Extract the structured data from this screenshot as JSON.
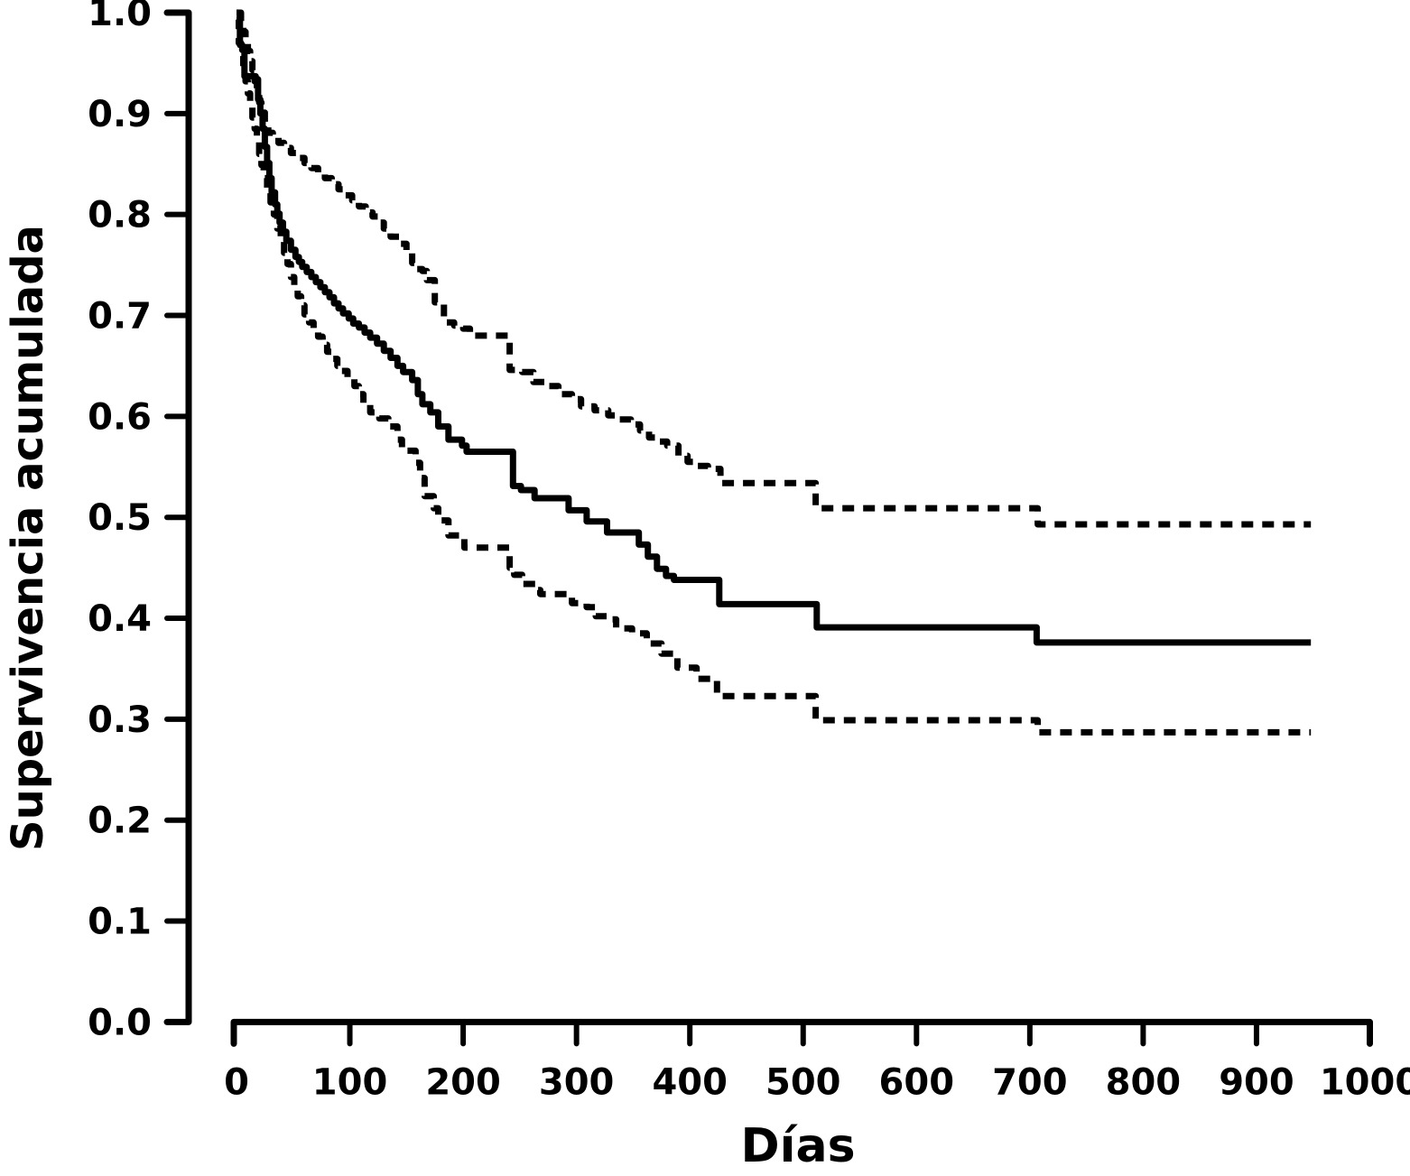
{
  "figure": {
    "background_color": "#ffffff",
    "line_color": "#000000"
  },
  "chart_data": {
    "type": "line",
    "subtype": "kaplan-meier-step-curve-with-confidence-bands",
    "title": "",
    "xlabel": "Días",
    "ylabel": "Supervivencia acumulada",
    "xlim": [
      0,
      1000
    ],
    "ylim": [
      0.0,
      1.0
    ],
    "grid": false,
    "legend": false,
    "x_ticks": [
      {
        "v": 0,
        "label": "0"
      },
      {
        "v": 100,
        "label": "100"
      },
      {
        "v": 200,
        "label": "200"
      },
      {
        "v": 300,
        "label": "300"
      },
      {
        "v": 400,
        "label": "400"
      },
      {
        "v": 500,
        "label": "500"
      },
      {
        "v": 600,
        "label": "600"
      },
      {
        "v": 700,
        "label": "700"
      },
      {
        "v": 800,
        "label": "800"
      },
      {
        "v": 900,
        "label": "900"
      },
      {
        "v": 1000,
        "label": "1000"
      }
    ],
    "y_ticks": [
      {
        "v": 1.0,
        "label": "1.0"
      },
      {
        "v": 0.9,
        "label": "0.9"
      },
      {
        "v": 0.8,
        "label": "0.8"
      },
      {
        "v": 0.7,
        "label": "0.7"
      },
      {
        "v": 0.6,
        "label": "0.6"
      },
      {
        "v": 0.5,
        "label": "0.5"
      },
      {
        "v": 0.4,
        "label": "0.4"
      },
      {
        "v": 0.3,
        "label": "0.3"
      },
      {
        "v": 0.2,
        "label": "0.2"
      },
      {
        "v": 0.1,
        "label": "0.1"
      },
      {
        "v": 0.0,
        "label": "0.0"
      }
    ],
    "series": [
      {
        "name": "supervivencia-acumulada",
        "style": "solid",
        "points": [
          [
            0,
            1.0
          ],
          [
            3,
            0.968
          ],
          [
            5,
            0.963
          ],
          [
            7,
            0.937
          ],
          [
            17,
            0.934
          ],
          [
            19,
            0.914
          ],
          [
            21,
            0.9
          ],
          [
            23,
            0.885
          ],
          [
            25,
            0.867
          ],
          [
            27,
            0.851
          ],
          [
            29,
            0.836
          ],
          [
            31,
            0.822
          ],
          [
            34,
            0.81
          ],
          [
            36,
            0.801
          ],
          [
            38,
            0.792
          ],
          [
            41,
            0.783
          ],
          [
            44,
            0.774
          ],
          [
            48,
            0.765
          ],
          [
            52,
            0.758
          ],
          [
            55,
            0.753
          ],
          [
            58,
            0.748
          ],
          [
            62,
            0.743
          ],
          [
            66,
            0.738
          ],
          [
            70,
            0.733
          ],
          [
            74,
            0.728
          ],
          [
            78,
            0.723
          ],
          [
            82,
            0.718
          ],
          [
            86,
            0.712
          ],
          [
            90,
            0.707
          ],
          [
            94,
            0.702
          ],
          [
            99,
            0.697
          ],
          [
            103,
            0.692
          ],
          [
            108,
            0.688
          ],
          [
            113,
            0.683
          ],
          [
            118,
            0.678
          ],
          [
            124,
            0.672
          ],
          [
            130,
            0.665
          ],
          [
            136,
            0.658
          ],
          [
            142,
            0.65
          ],
          [
            147,
            0.644
          ],
          [
            155,
            0.636
          ],
          [
            160,
            0.622
          ],
          [
            164,
            0.612
          ],
          [
            171,
            0.604
          ],
          [
            178,
            0.59
          ],
          [
            187,
            0.577
          ],
          [
            199,
            0.571
          ],
          [
            203,
            0.565
          ],
          [
            244,
            0.531
          ],
          [
            251,
            0.527
          ],
          [
            263,
            0.519
          ],
          [
            293,
            0.507
          ],
          [
            309,
            0.496
          ],
          [
            327,
            0.485
          ],
          [
            355,
            0.473
          ],
          [
            363,
            0.461
          ],
          [
            371,
            0.449
          ],
          [
            379,
            0.442
          ],
          [
            386,
            0.438
          ],
          [
            426,
            0.414
          ],
          [
            512,
            0.391
          ],
          [
            706,
            0.376
          ],
          [
            948,
            0.376
          ]
        ]
      },
      {
        "name": "ic95-superior",
        "style": "dashed",
        "points": [
          [
            1,
            1.0
          ],
          [
            4,
            0.99
          ],
          [
            6,
            0.981
          ],
          [
            8,
            0.972
          ],
          [
            10,
            0.962
          ],
          [
            12,
            0.952
          ],
          [
            14,
            0.943
          ],
          [
            16,
            0.932
          ],
          [
            18,
            0.921
          ],
          [
            20,
            0.911
          ],
          [
            22,
            0.901
          ],
          [
            25,
            0.891
          ],
          [
            28,
            0.881
          ],
          [
            32,
            0.876
          ],
          [
            37,
            0.871
          ],
          [
            42,
            0.866
          ],
          [
            48,
            0.861
          ],
          [
            54,
            0.856
          ],
          [
            60,
            0.851
          ],
          [
            66,
            0.846
          ],
          [
            72,
            0.841
          ],
          [
            78,
            0.836
          ],
          [
            84,
            0.83
          ],
          [
            90,
            0.825
          ],
          [
            96,
            0.819
          ],
          [
            102,
            0.814
          ],
          [
            108,
            0.808
          ],
          [
            114,
            0.802
          ],
          [
            120,
            0.798
          ],
          [
            126,
            0.792
          ],
          [
            130,
            0.786
          ],
          [
            136,
            0.778
          ],
          [
            144,
            0.771
          ],
          [
            150,
            0.763
          ],
          [
            155,
            0.752
          ],
          [
            159,
            0.746
          ],
          [
            164,
            0.744
          ],
          [
            168,
            0.735
          ],
          [
            175,
            0.713
          ],
          [
            183,
            0.693
          ],
          [
            192,
            0.69
          ],
          [
            200,
            0.687
          ],
          [
            206,
            0.68
          ],
          [
            241,
            0.646
          ],
          [
            252,
            0.644
          ],
          [
            262,
            0.634
          ],
          [
            274,
            0.63
          ],
          [
            284,
            0.622
          ],
          [
            296,
            0.617
          ],
          [
            304,
            0.61
          ],
          [
            316,
            0.606
          ],
          [
            328,
            0.601
          ],
          [
            338,
            0.597
          ],
          [
            348,
            0.592
          ],
          [
            356,
            0.586
          ],
          [
            364,
            0.579
          ],
          [
            372,
            0.575
          ],
          [
            380,
            0.571
          ],
          [
            390,
            0.561
          ],
          [
            398,
            0.555
          ],
          [
            406,
            0.551
          ],
          [
            416,
            0.548
          ],
          [
            427,
            0.534
          ],
          [
            511,
            0.509
          ],
          [
            707,
            0.493
          ],
          [
            948,
            0.493
          ]
        ]
      },
      {
        "name": "ic95-inferior",
        "style": "dashed",
        "points": [
          [
            0,
            0.993
          ],
          [
            2,
            0.97
          ],
          [
            4,
            0.957
          ],
          [
            6,
            0.944
          ],
          [
            8,
            0.932
          ],
          [
            10,
            0.92
          ],
          [
            12,
            0.908
          ],
          [
            14,
            0.896
          ],
          [
            16,
            0.885
          ],
          [
            18,
            0.872
          ],
          [
            20,
            0.86
          ],
          [
            22,
            0.849
          ],
          [
            24,
            0.836
          ],
          [
            27,
            0.824
          ],
          [
            30,
            0.812
          ],
          [
            33,
            0.8
          ],
          [
            36,
            0.786
          ],
          [
            39,
            0.774
          ],
          [
            42,
            0.762
          ],
          [
            45,
            0.751
          ],
          [
            48,
            0.738
          ],
          [
            51,
            0.728
          ],
          [
            54,
            0.719
          ],
          [
            57,
            0.71
          ],
          [
            60,
            0.701
          ],
          [
            64,
            0.693
          ],
          [
            68,
            0.686
          ],
          [
            72,
            0.679
          ],
          [
            76,
            0.671
          ],
          [
            80,
            0.664
          ],
          [
            85,
            0.657
          ],
          [
            89,
            0.65
          ],
          [
            93,
            0.645
          ],
          [
            98,
            0.638
          ],
          [
            104,
            0.63
          ],
          [
            108,
            0.622
          ],
          [
            112,
            0.613
          ],
          [
            118,
            0.604
          ],
          [
            126,
            0.598
          ],
          [
            134,
            0.59
          ],
          [
            142,
            0.577
          ],
          [
            146,
            0.566
          ],
          [
            158,
            0.554
          ],
          [
            162,
            0.539
          ],
          [
            166,
            0.521
          ],
          [
            174,
            0.509
          ],
          [
            178,
            0.497
          ],
          [
            187,
            0.482
          ],
          [
            201,
            0.47
          ],
          [
            241,
            0.45
          ],
          [
            245,
            0.443
          ],
          [
            252,
            0.434
          ],
          [
            264,
            0.428
          ],
          [
            268,
            0.424
          ],
          [
            296,
            0.415
          ],
          [
            309,
            0.411
          ],
          [
            317,
            0.402
          ],
          [
            327,
            0.399
          ],
          [
            335,
            0.39
          ],
          [
            349,
            0.385
          ],
          [
            362,
            0.375
          ],
          [
            375,
            0.365
          ],
          [
            389,
            0.351
          ],
          [
            406,
            0.34
          ],
          [
            424,
            0.323
          ],
          [
            511,
            0.299
          ],
          [
            707,
            0.287
          ],
          [
            948,
            0.287
          ]
        ]
      }
    ]
  }
}
